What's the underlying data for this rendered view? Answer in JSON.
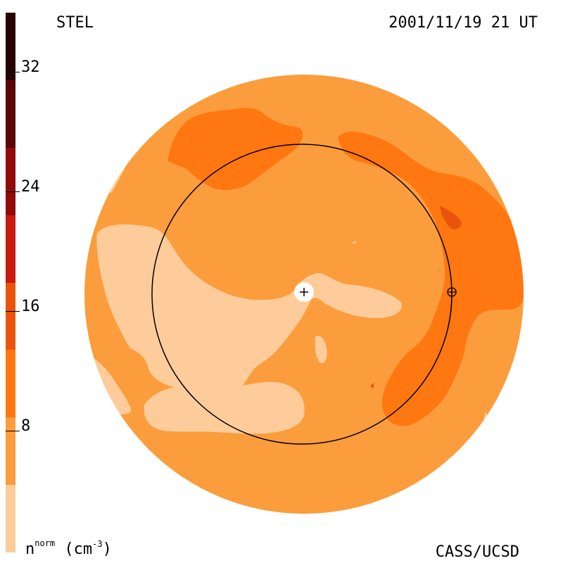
{
  "header": {
    "site": "STEL",
    "datetime": "2001/11/19 21 UT"
  },
  "footer": {
    "credit": "CASS/UCSD",
    "units_base": "n",
    "units_sup": "norm",
    "units_open": " (cm",
    "units_exp": "-3",
    "units_close": ")"
  },
  "colorbar": {
    "min": 0,
    "max": 36,
    "step": 4.5,
    "colors": [
      "#fdcc9a",
      "#fb9d3c",
      "#ff7711",
      "#e8540e",
      "#c81a10",
      "#900a0a",
      "#5a0606",
      "#270202"
    ],
    "ticks": [
      {
        "value": 8,
        "label": "8"
      },
      {
        "value": 16,
        "label": "16"
      },
      {
        "value": 24,
        "label": "24"
      },
      {
        "value": 32,
        "label": "32"
      }
    ]
  },
  "map": {
    "background_level_color": "#fb9d3c",
    "sun_marker": "+",
    "earth_marker": "⊕"
  }
}
